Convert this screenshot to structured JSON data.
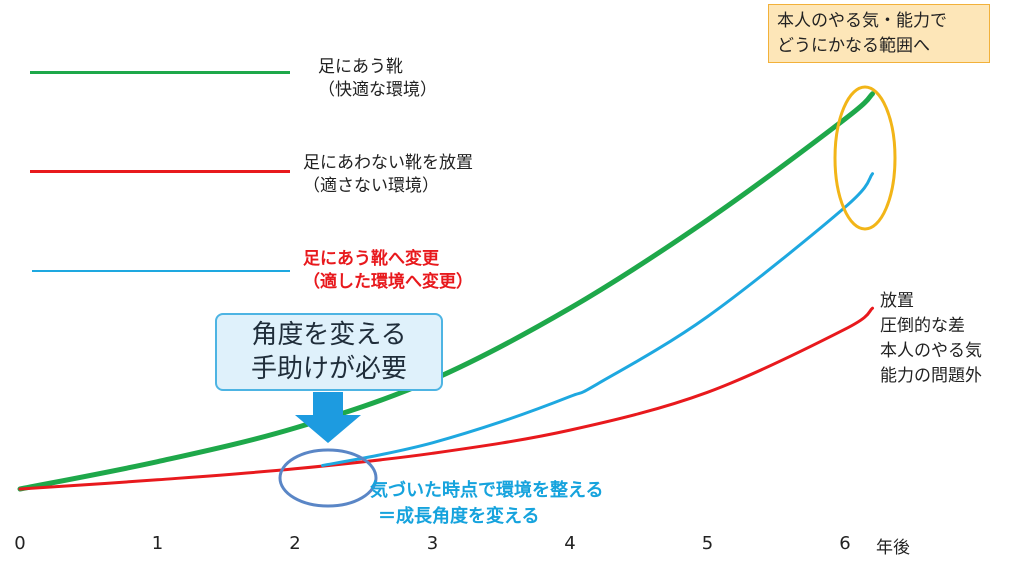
{
  "legend": [
    {
      "line_color": "#1ea84a",
      "lines": [
        "足にあう靴",
        "（快適な環境）"
      ],
      "emphasis": false
    },
    {
      "line_color": "#e8191d",
      "lines": [
        "足にあわない靴を放置",
        "（適さない環境）"
      ],
      "emphasis": false
    },
    {
      "line_color": "#1ea8e0",
      "lines": [
        "足にあう靴へ変更",
        "（適した環境へ変更）"
      ],
      "emphasis": true
    }
  ],
  "annotations": {
    "top_right_box": [
      "本人のやる気・能力で",
      "どうにかなる範囲へ"
    ],
    "callout": [
      "角度を変える",
      "手助けが必要"
    ],
    "bottom_note": [
      "気づいた時点で環境を整える",
      "＝成長角度を変える"
    ],
    "right_note": [
      "放置",
      "圧倒的な差",
      "本人のやる気",
      "能力の問題外"
    ]
  },
  "x_axis": {
    "unit_label": "年後"
  },
  "colors": {
    "green": "#1ea84a",
    "red": "#e8191d",
    "blue": "#1ea8e0",
    "ellipse_gold": "#f2b518",
    "ellipse_blue": "#5a86c6",
    "arrow_blue": "#1d9be0"
  },
  "chart_data": {
    "type": "line",
    "x_ticks": [
      "0",
      "1",
      "2",
      "3",
      "4",
      "5",
      "6"
    ],
    "xlim": [
      0,
      6.3
    ],
    "ylim": [
      0,
      100
    ],
    "y_axis_visible": false,
    "series": [
      {
        "name": "足にあう靴",
        "color": "#1ea84a",
        "x": [
          0,
          1,
          2,
          3,
          4,
          5,
          6,
          6.2
        ],
        "y": [
          0,
          6.5,
          14.5,
          26,
          43,
          64,
          88,
          94
        ]
      },
      {
        "name": "足にあわない靴を放置",
        "color": "#e8191d",
        "x": [
          0,
          1,
          2,
          3,
          4,
          5,
          6,
          6.2
        ],
        "y": [
          0,
          2.2,
          4.8,
          8.5,
          14,
          23,
          38,
          43
        ]
      },
      {
        "name": "足にあう靴へ変更",
        "color": "#1ea8e0",
        "x": [
          2.2,
          2.6,
          3,
          3.5,
          4,
          4.2,
          5,
          6,
          6.2
        ],
        "y": [
          5.6,
          8,
          11,
          16,
          22,
          25,
          41,
          67,
          75
        ]
      }
    ]
  }
}
